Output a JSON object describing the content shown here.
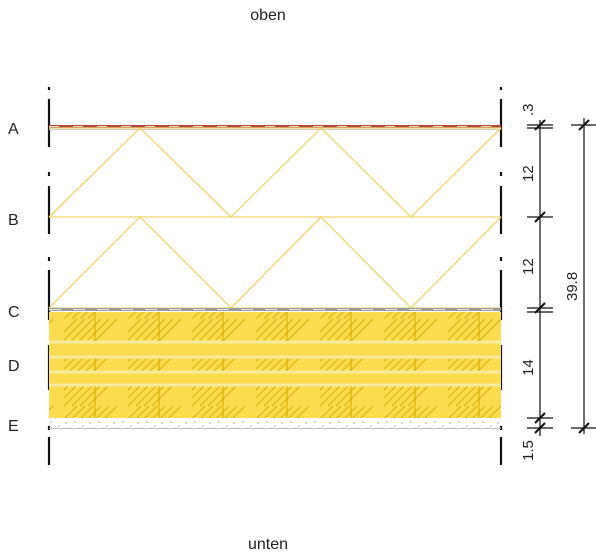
{
  "orientation": {
    "top": "oben",
    "bottom": "unten"
  },
  "layers": [
    {
      "id": "A",
      "label": "A"
    },
    {
      "id": "B",
      "label": "B"
    },
    {
      "id": "C",
      "label": "C"
    },
    {
      "id": "D",
      "label": "D"
    },
    {
      "id": "E",
      "label": "E"
    }
  ],
  "dimensions": {
    "segments": [
      ".3",
      "12",
      "12",
      "14",
      "1.5"
    ],
    "total": "39.8"
  },
  "colors": {
    "membrane": "#b4473b",
    "insulation_line": "#efd36b",
    "timber_fill": "#fbdc4f",
    "timber_hatch": "#d7a800",
    "separator": "#f3e18a",
    "gravel": "#a8a8a8",
    "ink": "#111111"
  }
}
